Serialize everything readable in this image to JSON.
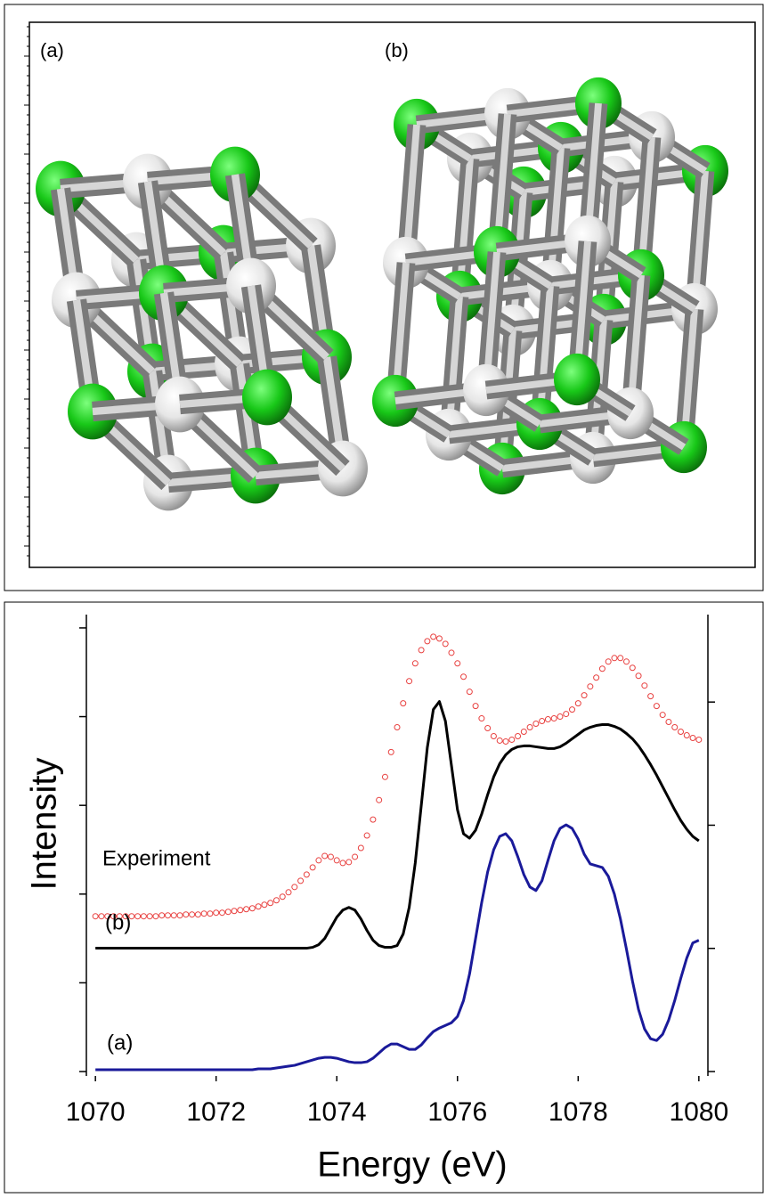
{
  "structures": {
    "labels": [
      "(a)",
      "(b)"
    ]
  },
  "chart_data": {
    "type": "line",
    "xlabel": "Energy (eV)",
    "ylabel": "Intensity",
    "x": [
      1070,
      1070.1,
      1070.2,
      1070.3,
      1070.4,
      1070.5,
      1070.6,
      1070.7,
      1070.8,
      1070.9,
      1071,
      1071.1,
      1071.2,
      1071.3,
      1071.4,
      1071.5,
      1071.6,
      1071.7,
      1071.8,
      1071.9,
      1072,
      1072.1,
      1072.2,
      1072.3,
      1072.4,
      1072.5,
      1072.6,
      1072.7,
      1072.8,
      1072.9,
      1073,
      1073.1,
      1073.2,
      1073.3,
      1073.4,
      1073.5,
      1073.6,
      1073.7,
      1073.8,
      1073.9,
      1074,
      1074.1,
      1074.2,
      1074.3,
      1074.4,
      1074.5,
      1074.6,
      1074.7,
      1074.8,
      1074.9,
      1075,
      1075.1,
      1075.2,
      1075.3,
      1075.4,
      1075.5,
      1075.6,
      1075.7,
      1075.8,
      1075.9,
      1076,
      1076.1,
      1076.2,
      1076.3,
      1076.4,
      1076.5,
      1076.6,
      1076.7,
      1076.8,
      1076.9,
      1077,
      1077.1,
      1077.2,
      1077.3,
      1077.4,
      1077.5,
      1077.6,
      1077.7,
      1077.8,
      1077.9,
      1078,
      1078.1,
      1078.2,
      1078.3,
      1078.4,
      1078.5,
      1078.6,
      1078.7,
      1078.8,
      1078.9,
      1079,
      1079.1,
      1079.2,
      1079.3,
      1079.4,
      1079.5,
      1079.6,
      1079.7,
      1079.8,
      1079.9,
      1080
    ],
    "series": [
      {
        "name": "Experiment",
        "color": "#e8403f",
        "style": "markers",
        "values": [
          1.75,
          1.75,
          1.75,
          1.75,
          1.75,
          1.75,
          1.75,
          1.75,
          1.75,
          1.75,
          1.75,
          1.76,
          1.76,
          1.76,
          1.76,
          1.77,
          1.77,
          1.77,
          1.78,
          1.78,
          1.79,
          1.79,
          1.8,
          1.81,
          1.82,
          1.83,
          1.84,
          1.86,
          1.88,
          1.9,
          1.93,
          1.97,
          2.02,
          2.08,
          2.15,
          2.22,
          2.3,
          2.38,
          2.43,
          2.42,
          2.38,
          2.35,
          2.36,
          2.42,
          2.52,
          2.66,
          2.84,
          3.06,
          3.32,
          3.6,
          3.88,
          4.15,
          4.4,
          4.6,
          4.75,
          4.85,
          4.9,
          4.88,
          4.82,
          4.72,
          4.6,
          4.45,
          4.28,
          4.12,
          3.98,
          3.87,
          3.78,
          3.73,
          3.72,
          3.74,
          3.78,
          3.83,
          3.88,
          3.92,
          3.95,
          3.97,
          3.98,
          4,
          4.03,
          4.08,
          4.15,
          4.24,
          4.34,
          4.44,
          4.54,
          4.62,
          4.66,
          4.66,
          4.62,
          4.55,
          4.46,
          4.35,
          4.23,
          4.12,
          4.02,
          3.94,
          3.88,
          3.83,
          3.79,
          3.76,
          3.74
        ]
      },
      {
        "name": "(b)",
        "color": "#000000",
        "style": "line",
        "values": [
          1.39,
          1.39,
          1.39,
          1.39,
          1.39,
          1.39,
          1.39,
          1.39,
          1.39,
          1.39,
          1.39,
          1.39,
          1.39,
          1.39,
          1.39,
          1.39,
          1.39,
          1.39,
          1.39,
          1.39,
          1.39,
          1.39,
          1.39,
          1.39,
          1.39,
          1.39,
          1.39,
          1.39,
          1.39,
          1.39,
          1.39,
          1.39,
          1.39,
          1.39,
          1.39,
          1.39,
          1.4,
          1.43,
          1.5,
          1.62,
          1.74,
          1.82,
          1.85,
          1.82,
          1.72,
          1.59,
          1.48,
          1.42,
          1.4,
          1.4,
          1.42,
          1.55,
          1.85,
          2.35,
          3,
          3.65,
          4.08,
          4.17,
          3.95,
          3.45,
          2.95,
          2.68,
          2.63,
          2.72,
          2.9,
          3.12,
          3.32,
          3.47,
          3.57,
          3.63,
          3.66,
          3.67,
          3.67,
          3.66,
          3.65,
          3.64,
          3.64,
          3.66,
          3.7,
          3.75,
          3.8,
          3.85,
          3.88,
          3.9,
          3.91,
          3.91,
          3.89,
          3.86,
          3.81,
          3.75,
          3.67,
          3.57,
          3.46,
          3.34,
          3.21,
          3.08,
          2.95,
          2.83,
          2.73,
          2.65,
          2.6
        ]
      },
      {
        "name": "(a)",
        "color": "#1a1a9a",
        "style": "line",
        "values": [
          0.02,
          0.02,
          0.02,
          0.02,
          0.02,
          0.02,
          0.02,
          0.02,
          0.02,
          0.02,
          0.02,
          0.02,
          0.02,
          0.02,
          0.02,
          0.02,
          0.02,
          0.02,
          0.02,
          0.02,
          0.02,
          0.02,
          0.02,
          0.02,
          0.02,
          0.02,
          0.02,
          0.03,
          0.03,
          0.03,
          0.04,
          0.05,
          0.06,
          0.07,
          0.09,
          0.11,
          0.13,
          0.15,
          0.16,
          0.16,
          0.15,
          0.13,
          0.11,
          0.1,
          0.1,
          0.11,
          0.15,
          0.21,
          0.27,
          0.31,
          0.31,
          0.28,
          0.25,
          0.25,
          0.3,
          0.38,
          0.45,
          0.49,
          0.52,
          0.55,
          0.62,
          0.8,
          1.1,
          1.5,
          1.9,
          2.25,
          2.5,
          2.65,
          2.68,
          2.6,
          2.42,
          2.22,
          2.08,
          2.04,
          2.15,
          2.38,
          2.6,
          2.74,
          2.78,
          2.74,
          2.62,
          2.45,
          2.34,
          2.32,
          2.3,
          2.2,
          2,
          1.72,
          1.38,
          1.02,
          0.7,
          0.48,
          0.37,
          0.35,
          0.42,
          0.58,
          0.8,
          1.05,
          1.28,
          1.45,
          1.48
        ]
      }
    ],
    "xlim": [
      1069.85,
      1080.15
    ],
    "xticks": [
      1070,
      1072,
      1074,
      1076,
      1078,
      1080
    ],
    "ylim": [
      -0.05,
      5.15
    ],
    "yticks": [
      0,
      1,
      2,
      3,
      4,
      5
    ],
    "y2lim": [
      -0.036,
      3.71
    ],
    "y2ticks": [
      0,
      1,
      2,
      3
    ]
  }
}
